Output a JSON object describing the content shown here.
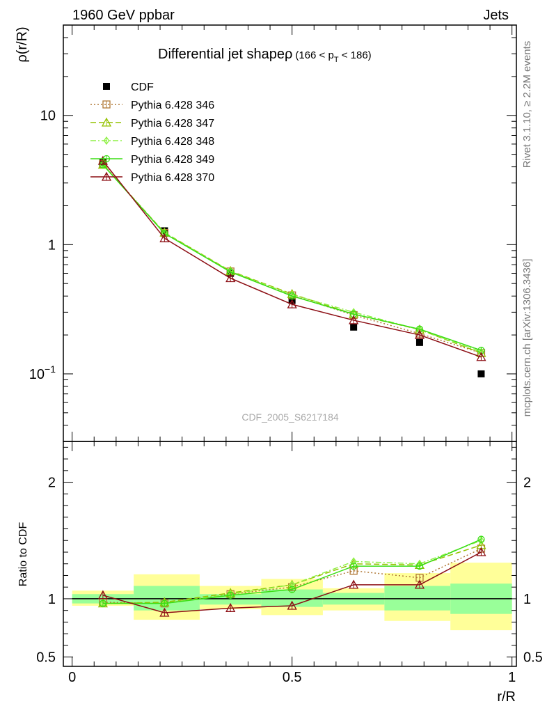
{
  "header": {
    "left": "1960 GeV ppbar",
    "right": "Jets"
  },
  "side_labels": {
    "top": "Rivet 3.1.10, ≥ 2.2M events",
    "bottom": "mcplots.cern.ch [arXiv:1306.3436]"
  },
  "watermark": "CDF_2005_S6217184",
  "title": {
    "main": "Differential jet shapeρ",
    "sub_a": "(166 < p",
    "sub_t": "T",
    "sub_b": " < 186)"
  },
  "colors": {
    "cdf": "#000000",
    "py346": "#b07836",
    "py347": "#94c200",
    "py348": "#8ff046",
    "py349": "#3ade14",
    "py370": "#8c0e14",
    "band_yellow": "#ffff99",
    "band_green": "#99ff99"
  },
  "chart_data": [
    {
      "type": "line",
      "ylabel": "ρ(r/R)",
      "yscale": "log",
      "xlim": [
        -0.02,
        1.01
      ],
      "ylim": [
        0.03,
        50
      ],
      "yticks": [
        {
          "value": 10,
          "base": "10",
          "exp": ""
        },
        {
          "value": 1,
          "base": "1",
          "exp": ""
        },
        {
          "value": 0.1,
          "base": "10",
          "exp": "−1"
        }
      ],
      "legend_position": "top-left",
      "x": [
        0.07,
        0.21,
        0.36,
        0.5,
        0.64,
        0.79,
        0.93
      ],
      "series": [
        {
          "name": "CDF",
          "key": "cdf",
          "style": "data",
          "values": [
            4.35,
            1.28,
            0.6,
            0.37,
            0.23,
            0.175,
            0.1
          ]
        },
        {
          "name": "Pythia 6.428 346",
          "key": "py346",
          "marker": "square",
          "dash": "2,3",
          "values": [
            4.2,
            1.23,
            0.62,
            0.405,
            0.285,
            0.205,
            0.145
          ]
        },
        {
          "name": "Pythia 6.428 347",
          "key": "py347",
          "marker": "triangle",
          "dash": "8,4",
          "values": [
            4.15,
            1.24,
            0.625,
            0.415,
            0.29,
            0.22,
            0.145
          ]
        },
        {
          "name": "Pythia 6.428 348",
          "key": "py348",
          "marker": "diamond",
          "dash": "8,3,2,3",
          "values": [
            4.15,
            1.23,
            0.62,
            0.41,
            0.3,
            0.22,
            0.148
          ]
        },
        {
          "name": "Pythia 6.428 349",
          "key": "py349",
          "marker": "circle",
          "dash": "",
          "values": [
            4.15,
            1.22,
            0.615,
            0.4,
            0.29,
            0.222,
            0.152
          ]
        },
        {
          "name": "Pythia 6.428 370",
          "key": "py370",
          "marker": "triangle",
          "dash": "",
          "values": [
            4.45,
            1.12,
            0.55,
            0.345,
            0.26,
            0.2,
            0.135
          ]
        }
      ]
    },
    {
      "type": "line",
      "xlabel": "r/R",
      "ylabel": "Ratio to CDF",
      "xlim": [
        -0.02,
        1.01
      ],
      "ylim": [
        0.42,
        2.35
      ],
      "yticks": [
        {
          "value": 2,
          "label": "2"
        },
        {
          "value": 1,
          "label": "1"
        },
        {
          "value": 0.5,
          "label": "0.5"
        }
      ],
      "xticks": [
        {
          "value": 0,
          "label": "0"
        },
        {
          "value": 0.5,
          "label": "0.5"
        },
        {
          "value": 1,
          "label": "1"
        }
      ],
      "bins": [
        [
          0,
          0.14
        ],
        [
          0.14,
          0.29
        ],
        [
          0.29,
          0.43
        ],
        [
          0.43,
          0.57
        ],
        [
          0.57,
          0.71
        ],
        [
          0.71,
          0.86
        ],
        [
          0.86,
          1.0
        ]
      ],
      "band_yellow": [
        [
          0.94,
          1.07
        ],
        [
          0.82,
          1.21
        ],
        [
          0.91,
          1.11
        ],
        [
          0.86,
          1.17
        ],
        [
          0.9,
          1.09
        ],
        [
          0.81,
          1.22
        ],
        [
          0.73,
          1.31
        ]
      ],
      "band_green": [
        [
          0.96,
          1.04
        ],
        [
          0.9,
          1.11
        ],
        [
          0.95,
          1.04
        ],
        [
          0.93,
          1.08
        ],
        [
          0.95,
          1.05
        ],
        [
          0.9,
          1.11
        ],
        [
          0.87,
          1.13
        ]
      ],
      "x": [
        0.07,
        0.21,
        0.36,
        0.5,
        0.64,
        0.79,
        0.93
      ],
      "series": [
        {
          "name": "Pythia 6.428 346",
          "key": "py346",
          "marker": "square",
          "dash": "2,3",
          "values": [
            0.97,
            0.96,
            1.04,
            1.1,
            1.24,
            1.18,
            1.43
          ]
        },
        {
          "name": "Pythia 6.428 347",
          "key": "py347",
          "marker": "triangle",
          "dash": "8,4",
          "values": [
            0.96,
            0.97,
            1.05,
            1.12,
            1.3,
            1.29,
            1.46
          ]
        },
        {
          "name": "Pythia 6.428 348",
          "key": "py348",
          "marker": "diamond",
          "dash": "8,3,2,3",
          "values": [
            0.96,
            0.96,
            1.04,
            1.12,
            1.32,
            1.3,
            1.5
          ]
        },
        {
          "name": "Pythia 6.428 349",
          "key": "py349",
          "marker": "circle",
          "dash": "",
          "values": [
            0.96,
            0.96,
            1.03,
            1.08,
            1.28,
            1.28,
            1.51
          ]
        },
        {
          "name": "Pythia 6.428 370",
          "key": "py370",
          "marker": "triangle",
          "dash": "",
          "values": [
            1.03,
            0.88,
            0.92,
            0.94,
            1.12,
            1.12,
            1.4
          ]
        }
      ]
    }
  ]
}
